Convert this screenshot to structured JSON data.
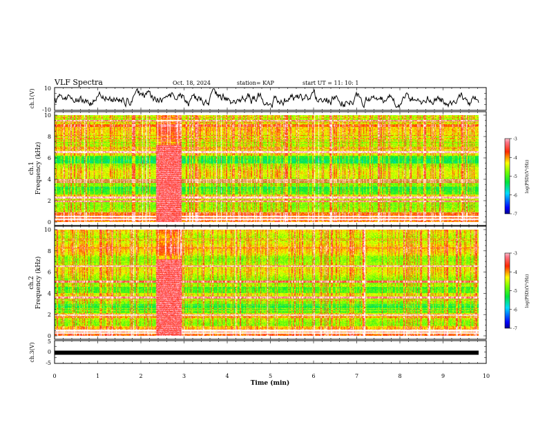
{
  "header": {
    "title": "VLF Spectra",
    "date": "Oct. 18, 2024",
    "station": "station= KAP",
    "start": "start  UT =   11: 10: 1"
  },
  "chart_data": [
    {
      "type": "line",
      "name": "ch1-waveform",
      "ylabel": "ch.1(V)",
      "ylim": [
        -10,
        10
      ],
      "yticks": [
        "10",
        "-10"
      ],
      "xlim": [
        0,
        10
      ]
    },
    {
      "type": "heatmap",
      "name": "ch1-spectrogram",
      "ylabel_lines": [
        "ch.1",
        "Frequency (kHz)"
      ],
      "ylim": [
        0,
        10
      ],
      "yticks": [
        "0",
        "2",
        "4",
        "6",
        "8",
        "10"
      ],
      "xlim": [
        0,
        9.85
      ],
      "colorbar": {
        "label": "log(PSD)(V²/Hz)",
        "range": [
          -7,
          -3
        ],
        "ticks": [
          "-3",
          "-4",
          "-5",
          "-6",
          "-7"
        ]
      },
      "features": {
        "burst_minutes": [
          2.35,
          2.95
        ],
        "persistent_lines_khz": [
          0.25,
          0.5,
          1.95,
          2.3,
          3.75,
          3.95,
          6.55,
          9.5
        ],
        "low_power_bands_khz": [
          [
            2.55,
            3.35
          ],
          [
            5.5,
            6.2
          ]
        ]
      }
    },
    {
      "type": "heatmap",
      "name": "ch2-spectrogram",
      "ylabel_lines": [
        "ch.2",
        "Frequency (kHz)"
      ],
      "ylim": [
        0,
        10
      ],
      "yticks": [
        "0",
        "2",
        "4",
        "6",
        "8",
        "10"
      ],
      "xlim": [
        0,
        9.85
      ],
      "colorbar": {
        "label": "log(PSD)(V²/Hz)",
        "range": [
          -7,
          -3
        ],
        "ticks": [
          "-3",
          "-4",
          "-5",
          "-6",
          "-7"
        ]
      },
      "features": {
        "burst_minutes": [
          2.35,
          2.95
        ],
        "persistent_lines_khz": [
          0.25,
          0.5,
          1.95,
          3.6,
          5.1,
          6.55
        ],
        "low_power_bands_khz": [
          [
            2.15,
            3.0
          ],
          [
            4.0,
            4.6
          ]
        ]
      }
    },
    {
      "type": "line",
      "name": "ch3-waveform",
      "ylabel": "ch.3(V)",
      "ylim": [
        -5,
        5
      ],
      "yticks": [
        "5",
        "0",
        "-5"
      ],
      "xlim": [
        0,
        10
      ],
      "level_v": -0.3
    }
  ],
  "xaxis": {
    "label": "Time (min)",
    "ticks": [
      "0",
      "1",
      "2",
      "3",
      "4",
      "5",
      "6",
      "7",
      "8",
      "9",
      "10"
    ]
  },
  "colors": {
    "colormap": [
      "#000080",
      "#0000ff",
      "#00ffff",
      "#00ff00",
      "#ffff00",
      "#ff0000",
      "#ffffff"
    ]
  }
}
